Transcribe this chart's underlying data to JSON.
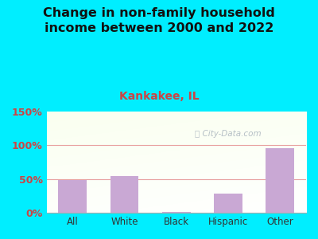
{
  "title": "Change in non-family household\nincome between 2000 and 2022",
  "subtitle": "Kankakee, IL",
  "categories": [
    "All",
    "White",
    "Black",
    "Hispanic",
    "Other"
  ],
  "values": [
    49,
    54,
    1,
    29,
    96
  ],
  "bar_color": "#c9a8d4",
  "title_fontsize": 11.5,
  "subtitle_fontsize": 10,
  "subtitle_color": "#cc4444",
  "title_color": "#111111",
  "tick_color": "#cc4444",
  "xlabel_color": "#333333",
  "ylim": [
    0,
    150
  ],
  "yticks": [
    0,
    50,
    100,
    150
  ],
  "ytick_labels": [
    "0%",
    "50%",
    "100%",
    "150%"
  ],
  "bg_outer": "#00eeff",
  "watermark": "City-Data.com",
  "grid_color": "#e8a0a0",
  "bar_width": 0.55
}
